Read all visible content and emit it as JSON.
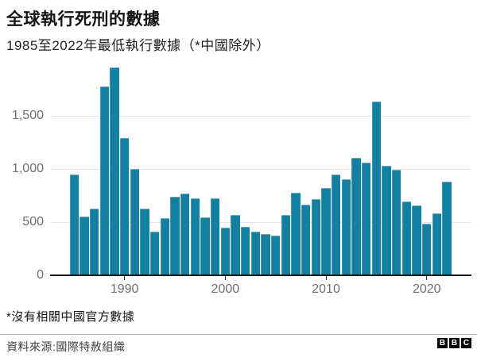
{
  "title": "全球執行死刑的數據",
  "subtitle": "1985至2022年最低執行數據（*中國除外）",
  "footnote": "*沒有相關中國官方數據",
  "source": "資料來源:國際特赦組織",
  "logo": {
    "letters": [
      "B",
      "B",
      "C"
    ]
  },
  "colors": {
    "bar": "#1380A1",
    "grid": "#e4e4e4",
    "axis": "#1a1a1a",
    "tick_label": "#6e6e73"
  },
  "chart_data": {
    "type": "bar",
    "title": "全球執行死刑的數據",
    "subtitle": "1985至2022年最低執行數據（*中國除外）",
    "xlabel": "",
    "ylabel": "",
    "grid": "horizontal",
    "legend": "none",
    "ylim": [
      0,
      2030
    ],
    "x": [
      1985,
      1986,
      1987,
      1988,
      1989,
      1990,
      1991,
      1992,
      1993,
      1994,
      1995,
      1996,
      1997,
      1998,
      1999,
      2000,
      2001,
      2002,
      2003,
      2004,
      2005,
      2006,
      2007,
      2008,
      2009,
      2010,
      2011,
      2012,
      2013,
      2014,
      2015,
      2016,
      2017,
      2018,
      2019,
      2020,
      2021,
      2022
    ],
    "values": [
      950,
      550,
      625,
      1770,
      1950,
      1290,
      1000,
      625,
      410,
      535,
      740,
      765,
      720,
      545,
      725,
      445,
      570,
      455,
      410,
      390,
      370,
      570,
      775,
      660,
      714,
      820,
      950,
      905,
      1105,
      1060,
      1634,
      1032,
      993,
      690,
      657,
      483,
      579,
      883
    ],
    "yticks": [
      {
        "value": 0,
        "label": "0"
      },
      {
        "value": 500,
        "label": "500"
      },
      {
        "value": 1000,
        "label": "1,000"
      },
      {
        "value": 1500,
        "label": "1,500"
      }
    ],
    "xticks": [
      {
        "value": 1990,
        "label": "1990"
      },
      {
        "value": 2000,
        "label": "2000"
      },
      {
        "value": 2010,
        "label": "2010"
      },
      {
        "value": 2020,
        "label": "2020"
      }
    ]
  }
}
